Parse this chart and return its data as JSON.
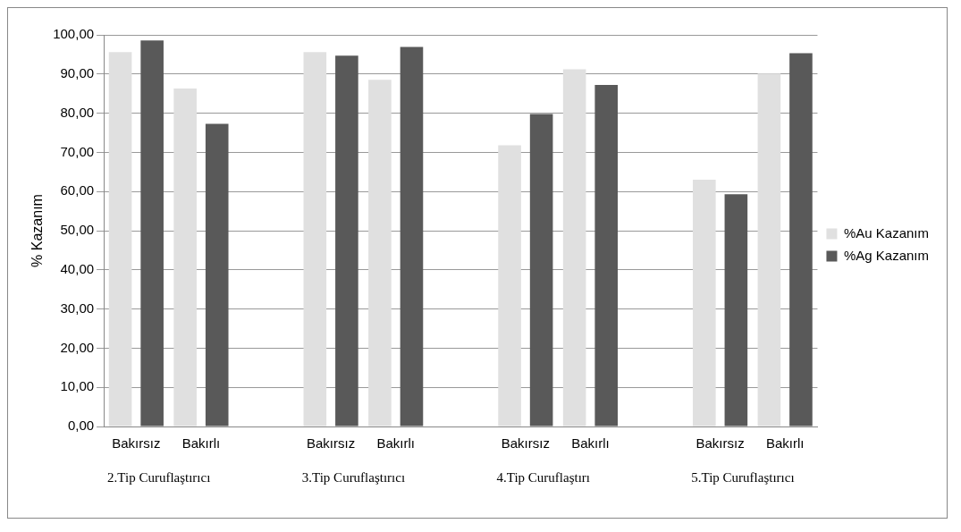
{
  "chart_data": {
    "type": "bar",
    "ylabel": "% Kazanım",
    "categories": [
      "Bakırsız",
      "Bakırlı",
      null,
      "Bakırsız",
      "Bakırlı",
      null,
      "Bakırsız",
      "Bakırlı",
      null,
      "Bakırsız",
      "Bakırlı"
    ],
    "series": [
      {
        "name": "%Au Kazanım",
        "color": "#e0e0e0",
        "values": [
          95.6,
          86.3,
          null,
          95.6,
          88.5,
          null,
          71.8,
          91.2,
          null,
          63.0,
          90.1
        ]
      },
      {
        "name": "%Ag Kazanım",
        "color": "#595959",
        "values": [
          98.6,
          77.3,
          null,
          94.7,
          96.9,
          null,
          79.8,
          87.2,
          null,
          59.3,
          95.3
        ]
      }
    ],
    "ylim": [
      0,
      100
    ],
    "yticks": [
      {
        "value": 0,
        "label": "0,00"
      },
      {
        "value": 10,
        "label": "10,00"
      },
      {
        "value": 20,
        "label": "20,00"
      },
      {
        "value": 30,
        "label": "30,00"
      },
      {
        "value": 40,
        "label": "40,00"
      },
      {
        "value": 50,
        "label": "50,00"
      },
      {
        "value": 60,
        "label": "60,00"
      },
      {
        "value": 70,
        "label": "70,00"
      },
      {
        "value": 80,
        "label": "80,00"
      },
      {
        "value": 90,
        "label": "90,00"
      },
      {
        "value": 100,
        "label": "100,00"
      }
    ],
    "grid": "y",
    "legend": "right",
    "annotations": [
      "2.Tip Curuflaştırıcı",
      "3.Tip Curuflaştırıcı",
      "4.Tip Curuflaştırı",
      "5.Tip Curuflaştırıcı"
    ]
  }
}
